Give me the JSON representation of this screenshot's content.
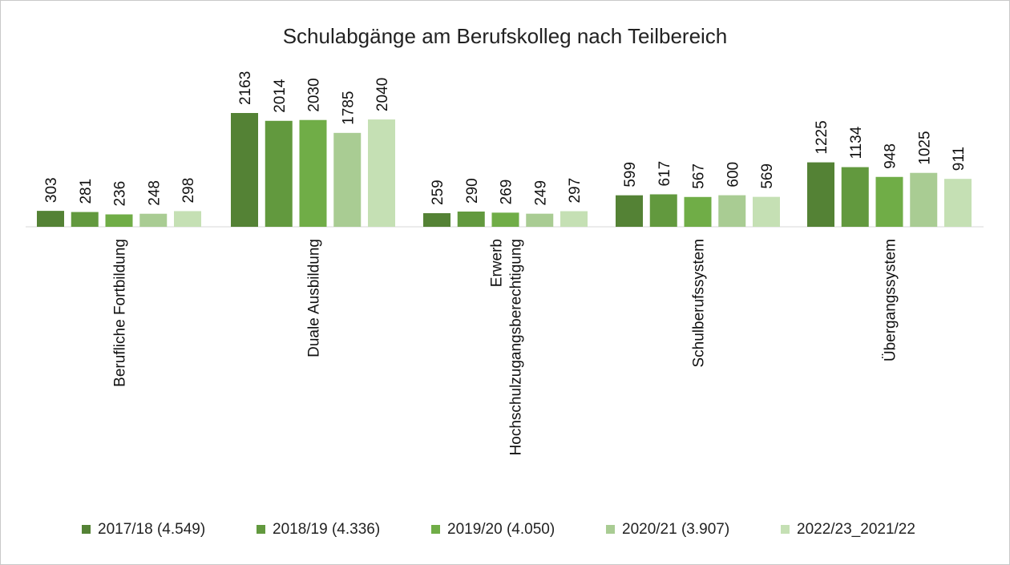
{
  "chart_data": {
    "type": "bar",
    "title": "Schulabgänge am Berufskolleg nach Teilbereich",
    "categories": [
      "Berufliche Fortbildung",
      "Duale Ausbildung",
      "Erwerb Hochschulzugangsberechtigung",
      "Schulberufssystem",
      "Übergangssystem"
    ],
    "category_lines": [
      [
        "Berufliche Fortbildung"
      ],
      [
        "Duale Ausbildung"
      ],
      [
        "Erwerb",
        "Hochschulzugangsberechtigung"
      ],
      [
        "Schulberufssystem"
      ],
      [
        "Übergangssystem"
      ]
    ],
    "series": [
      {
        "name": "2017/18 (4.549)",
        "values": [
          303,
          2163,
          259,
          599,
          1225
        ],
        "color": "#548235"
      },
      {
        "name": "2018/19 (4.336)",
        "values": [
          281,
          2014,
          290,
          617,
          1134
        ],
        "color": "#62993E"
      },
      {
        "name": "2019/20 (4.050)",
        "values": [
          236,
          2030,
          269,
          567,
          948
        ],
        "color": "#70AD47"
      },
      {
        "name": "2020/21 (3.907)",
        "values": [
          248,
          1785,
          249,
          600,
          1025
        ],
        "color": "#A9CC93"
      },
      {
        "name": "2022/23_2021/22",
        "values": [
          298,
          2040,
          297,
          569,
          911
        ],
        "color": "#C5E0B4"
      }
    ],
    "ylim": [
      0,
      2163
    ],
    "xlabel": "",
    "ylabel": "",
    "grid": false,
    "legend_position": "bottom",
    "data_labels": true,
    "data_label_rotation": "vertical"
  }
}
